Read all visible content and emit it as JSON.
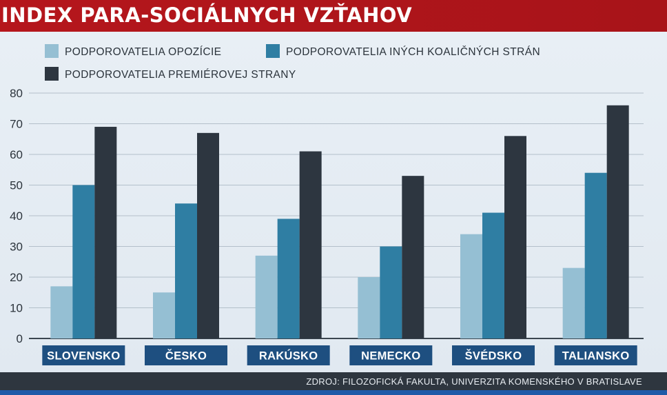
{
  "title": "INDEX PARA-SOCIÁLNYCH VZŤAHOV",
  "source": "ZDROJ: FILOZOFICKÁ FAKULTA, UNIVERZITA KOMENSKÉHO V BRATISLAVE",
  "colors": {
    "title_bg": "#b5161c",
    "opposition": "#95bfd3",
    "coalition": "#2f7ea3",
    "premier": "#2d3640",
    "category_label_bg": "#1e4f80",
    "source_bg": "#2e363f",
    "bottom_strip": "#1f5aa8"
  },
  "chart_data": {
    "type": "bar",
    "categories": [
      "SLOVENSKO",
      "ČESKO",
      "RAKÚSKO",
      "NEMECKO",
      "ŠVÉDSKO",
      "TALIANSKO"
    ],
    "series": [
      {
        "name": "PODPOROVATELIA OPOZÍCIE",
        "values": [
          17,
          15,
          27,
          20,
          34,
          23
        ]
      },
      {
        "name": "PODPOROVATELIA INÝCH KOALIČNÝCH STRÁN",
        "values": [
          50,
          44,
          39,
          30,
          41,
          54
        ]
      },
      {
        "name": "PODPOROVATELIA PREMIÉROVEJ STRANY",
        "values": [
          69,
          67,
          61,
          53,
          66,
          76
        ]
      }
    ],
    "ylim": [
      0,
      80
    ],
    "yticks": [
      "0",
      "10",
      "20",
      "30",
      "40",
      "50",
      "60",
      "70",
      "80"
    ],
    "grid": true,
    "legend": "top"
  }
}
